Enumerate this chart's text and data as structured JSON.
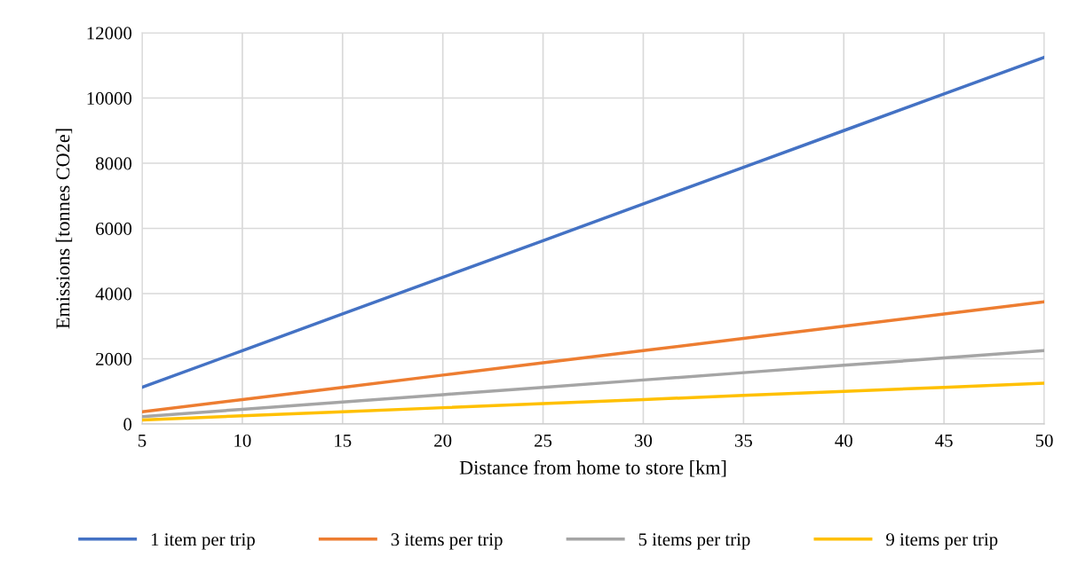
{
  "chart_data": {
    "type": "line",
    "xlabel": "Distance from home to store [km]",
    "ylabel": "Emissions [tonnes CO2e]",
    "x": [
      5,
      10,
      15,
      20,
      25,
      30,
      35,
      40,
      45,
      50
    ],
    "series": [
      {
        "name": "1 item per trip",
        "color": "#4472c4",
        "values": [
          1125,
          2250,
          3375,
          4500,
          5625,
          6750,
          7875,
          9000,
          10125,
          11250
        ]
      },
      {
        "name": "3 items per trip",
        "color": "#ed7d31",
        "values": [
          375,
          750,
          1125,
          1500,
          1875,
          2250,
          2625,
          3000,
          3375,
          3750
        ]
      },
      {
        "name": "5 items per trip",
        "color": "#a5a5a5",
        "values": [
          225,
          450,
          675,
          900,
          1125,
          1350,
          1575,
          1800,
          2025,
          2250
        ]
      },
      {
        "name": "9 items per trip",
        "color": "#ffc000",
        "values": [
          125,
          250,
          375,
          500,
          625,
          750,
          875,
          1000,
          1125,
          1250
        ]
      }
    ],
    "xlim": [
      5,
      50
    ],
    "xticks": [
      5,
      10,
      15,
      20,
      25,
      30,
      35,
      40,
      45,
      50
    ],
    "ylim": [
      0,
      12000
    ],
    "yticks": [
      0,
      2000,
      4000,
      6000,
      8000,
      10000,
      12000
    ],
    "grid": true,
    "legend": "bottom",
    "marker": "none",
    "line_style": "solid"
  }
}
